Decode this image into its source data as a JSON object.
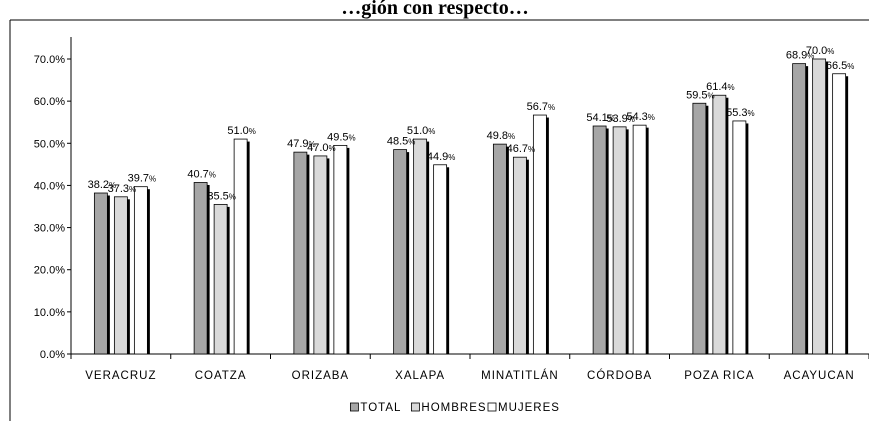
{
  "chart_data": {
    "type": "bar",
    "title": "…gión con respecto…",
    "categories": [
      "VERACRUZ",
      "COATZA",
      "ORIZABA",
      "XALAPA",
      "MINATITLÁN",
      "CÓRDOBA",
      "POZA RICA",
      "ACAYUCAN"
    ],
    "series": [
      {
        "name": "TOTAL",
        "values": [
          38.2,
          40.7,
          47.9,
          48.5,
          49.8,
          54.1,
          59.5,
          68.9
        ],
        "color": "#a6a6a6"
      },
      {
        "name": "HOMBRES",
        "values": [
          37.3,
          35.5,
          47.0,
          51.0,
          46.7,
          53.9,
          61.4,
          70.0
        ],
        "color": "#d9d9d9"
      },
      {
        "name": "MUJERES",
        "values": [
          39.7,
          51.0,
          49.5,
          44.9,
          56.7,
          54.3,
          55.3,
          66.5
        ],
        "color": "#ffffff"
      }
    ],
    "ylim": [
      0,
      70
    ],
    "yticks": [
      0,
      10,
      20,
      30,
      40,
      50,
      60,
      70
    ],
    "ytick_labels": [
      "0.0%",
      "10.0%",
      "20.0%",
      "30.0%",
      "40.0%",
      "50.0%",
      "60.0%",
      "70.0%"
    ],
    "value_suffix": "%",
    "legend_position": "bottom",
    "grid": false
  }
}
